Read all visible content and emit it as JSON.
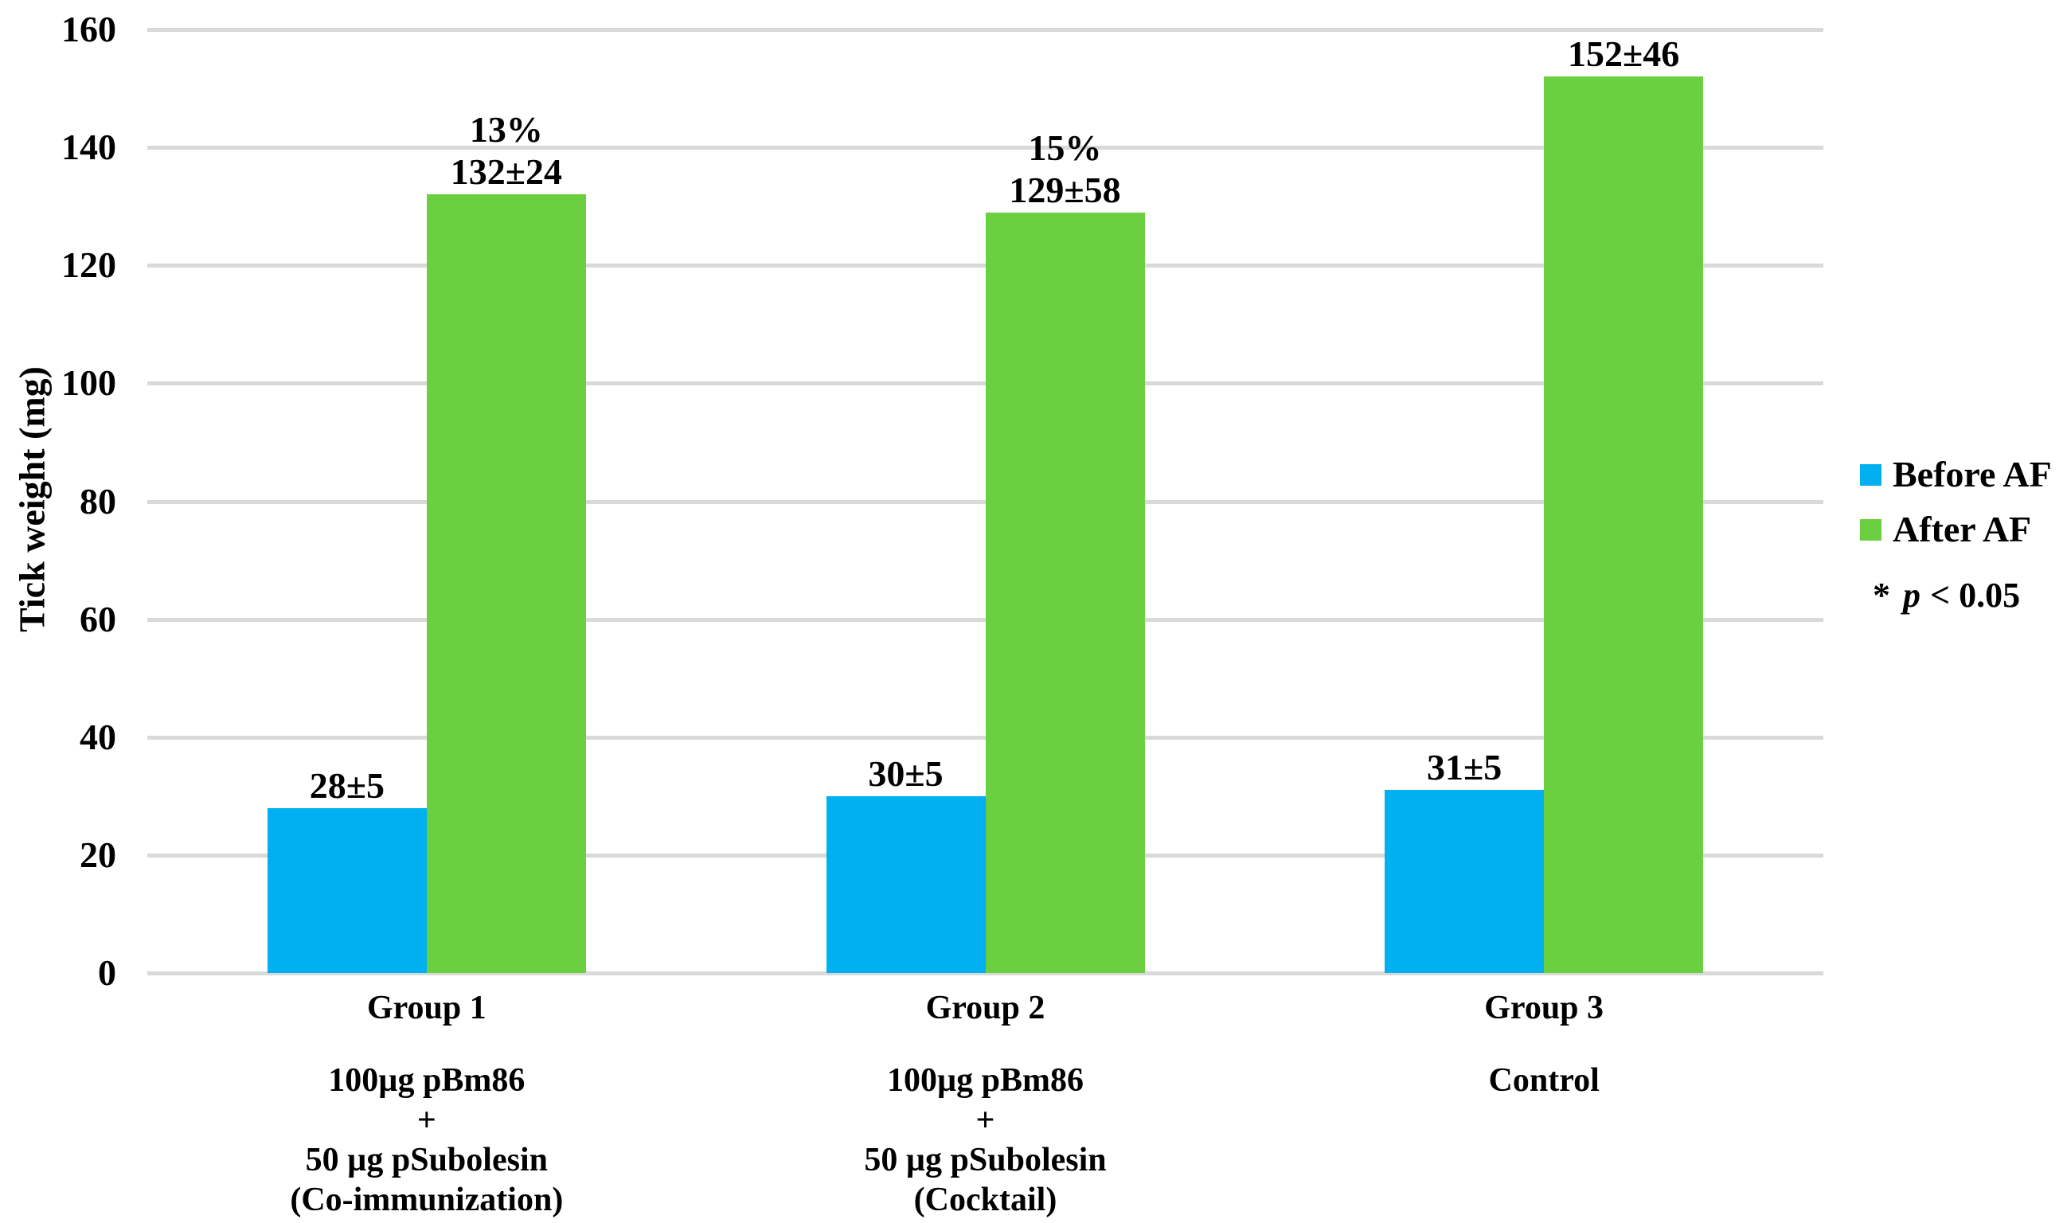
{
  "chart_data": {
    "type": "bar",
    "title": "",
    "ylabel": "Tick weight (mg)",
    "xlabel": "",
    "ylim": [
      0,
      160
    ],
    "yticks": [
      0,
      20,
      40,
      60,
      80,
      100,
      120,
      140,
      160
    ],
    "grid": true,
    "legend_position": "right-middle",
    "categories": [
      "Group 1",
      "Group 2",
      "Group 3"
    ],
    "category_sublabels": [
      [
        "100µg pBm86",
        "+",
        "50 µg pSubolesin",
        "(Co-immunization)"
      ],
      [
        "100µg pBm86",
        "+",
        "50 µg pSubolesin",
        "(Cocktail)"
      ],
      [
        "Control"
      ]
    ],
    "series": [
      {
        "name": "Before AF",
        "color": "#00B0F0",
        "values": [
          28,
          30,
          31
        ],
        "value_labels": [
          "28±5",
          "30±5",
          "31±5"
        ]
      },
      {
        "name": "After AF",
        "color": "#6AD03F",
        "values": [
          132,
          129,
          152
        ],
        "value_labels": [
          "132±24",
          "129±58",
          "152±46"
        ],
        "percent_labels": [
          "13%",
          "15%",
          ""
        ]
      }
    ],
    "significance": {
      "star": "*",
      "p_symbol": "p",
      "comparison": "< 0.05"
    },
    "colors": {
      "gridline": "#D9D9D9",
      "text": "#000000",
      "background": "#FFFFFF"
    }
  }
}
